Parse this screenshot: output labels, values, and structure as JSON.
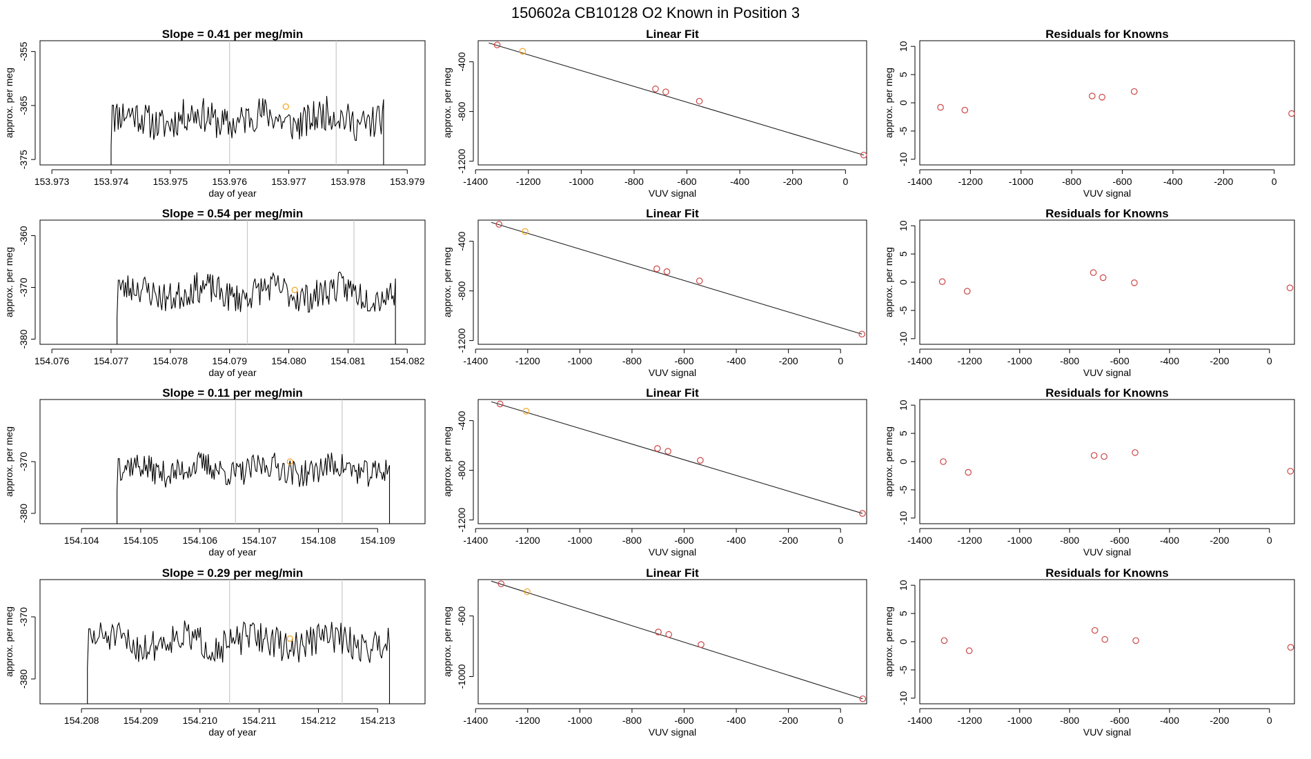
{
  "suptitle": "150602a      CB10128    O2 Known in Position  3",
  "colors": {
    "orange": "#f5a623",
    "red": "#cc4444",
    "line": "#000000",
    "grid": "#c8c8c8"
  },
  "chart_data": [
    {
      "type": "line",
      "title": "Slope =  0.41  per meg/min",
      "xlabel": "day of year",
      "ylabel": "approx. per meg",
      "xlim": [
        153.9728,
        153.9793
      ],
      "ylim": [
        -376,
        -353
      ],
      "xticks": [
        "153.973",
        "153.974",
        "153.975",
        "153.976",
        "153.977",
        "153.978",
        "153.979"
      ],
      "yticks": [
        "-355",
        "-365",
        "-375"
      ],
      "x_start": 153.974,
      "x_end": 153.9786,
      "baseline": -376,
      "y_mean": -367.5,
      "y_amp": 3.2,
      "seed": 11,
      "vlines": [
        153.976,
        153.9778
      ],
      "highlight": {
        "x": 153.97695,
        "y": -365.2
      }
    },
    {
      "type": "scatter",
      "title": "Linear Fit",
      "xlabel": "VUV signal",
      "ylabel": "approx. per meg",
      "xlim": [
        -1390,
        80
      ],
      "ylim": [
        -1230,
        -230
      ],
      "xticks": [
        "-1400",
        "-1200",
        "-1000",
        "-800",
        "-600",
        "-400",
        "-200",
        "0"
      ],
      "yticks": [
        "-400",
        "-800",
        "-1200"
      ],
      "points": [
        [
          -1318,
          -264
        ],
        [
          -1222,
          -315
        ],
        [
          -719,
          -618
        ],
        [
          -680,
          -642
        ],
        [
          -553,
          -717
        ],
        [
          69,
          -1151
        ]
      ],
      "point_colors": [
        "red",
        "orange",
        "red",
        "red",
        "red",
        "red"
      ],
      "fit": [
        [
          -1350,
          -248
        ],
        [
          69,
          -1151
        ]
      ]
    },
    {
      "type": "scatter",
      "title": "Residuals for Knowns",
      "xlabel": "VUV signal",
      "ylabel": "approx. per meg",
      "xlim": [
        -1400,
        80
      ],
      "ylim": [
        -11,
        11
      ],
      "xticks": [
        "-1400",
        "-1200",
        "-1000",
        "-800",
        "-600",
        "-400",
        "-200",
        "0"
      ],
      "yticks": [
        "10",
        "5",
        "0",
        "-5",
        "-10"
      ],
      "points": [
        [
          -1318,
          -0.8
        ],
        [
          -1222,
          -1.3
        ],
        [
          -719,
          1.2
        ],
        [
          -680,
          1.0
        ],
        [
          -553,
          2.0
        ],
        [
          69,
          -1.9
        ]
      ],
      "point_colors": [
        "red",
        "red",
        "red",
        "red",
        "red",
        "red"
      ]
    },
    {
      "type": "line",
      "title": "Slope =  0.54  per meg/min",
      "xlabel": "day of year",
      "ylabel": "approx. per meg",
      "xlim": [
        154.0758,
        154.0823
      ],
      "ylim": [
        -381,
        -357
      ],
      "xticks": [
        "154.076",
        "154.077",
        "154.078",
        "154.079",
        "154.080",
        "154.081",
        "154.082"
      ],
      "yticks": [
        "-360",
        "-370",
        "-380"
      ],
      "x_start": 154.0771,
      "x_end": 154.0818,
      "baseline": -381,
      "y_mean": -371.0,
      "y_amp": 3.0,
      "seed": 23,
      "vlines": [
        154.0793,
        154.0811
      ],
      "highlight": {
        "x": 154.0801,
        "y": -370.5
      }
    },
    {
      "type": "scatter",
      "title": "Linear Fit",
      "xlabel": "VUV signal",
      "ylabel": "approx. per meg",
      "xlim": [
        -1390,
        100
      ],
      "ylim": [
        -1230,
        -230
      ],
      "xticks": [
        "-1400",
        "-1200",
        "-1000",
        "-800",
        "-600",
        "-400",
        "-200",
        "0"
      ],
      "yticks": [
        "-400",
        "-800",
        "-1200"
      ],
      "points": [
        [
          -1310,
          -264
        ],
        [
          -1210,
          -322
        ],
        [
          -705,
          -622
        ],
        [
          -666,
          -645
        ],
        [
          -541,
          -719
        ],
        [
          82,
          -1148
        ]
      ],
      "point_colors": [
        "red",
        "orange",
        "red",
        "red",
        "red",
        "red"
      ],
      "fit": [
        [
          -1340,
          -248
        ],
        [
          82,
          -1148
        ]
      ]
    },
    {
      "type": "scatter",
      "title": "Residuals for Knowns",
      "xlabel": "VUV signal",
      "ylabel": "approx. per meg",
      "xlim": [
        -1400,
        100
      ],
      "ylim": [
        -11,
        11
      ],
      "xticks": [
        "-1400",
        "-1200",
        "-1000",
        "-800",
        "-600",
        "-400",
        "-200",
        "0"
      ],
      "yticks": [
        "10",
        "5",
        "0",
        "-5",
        "-10"
      ],
      "points": [
        [
          -1310,
          0.1
        ],
        [
          -1210,
          -1.6
        ],
        [
          -705,
          1.7
        ],
        [
          -666,
          0.8
        ],
        [
          -541,
          -0.1
        ],
        [
          82,
          -1.0
        ]
      ],
      "point_colors": [
        "red",
        "red",
        "red",
        "red",
        "red",
        "red"
      ]
    },
    {
      "type": "line",
      "title": "Slope =  0.11  per meg/min",
      "xlabel": "day of year",
      "ylabel": "approx. per meg",
      "xlim": [
        154.1033,
        154.1098
      ],
      "ylim": [
        -382,
        -358
      ],
      "xticks": [
        "154.104",
        "154.105",
        "154.106",
        "154.107",
        "154.108",
        "154.109"
      ],
      "yticks": [
        "-370",
        "-380"
      ],
      "x_start": 154.1046,
      "x_end": 154.1092,
      "baseline": -382,
      "y_mean": -371.5,
      "y_amp": 2.6,
      "seed": 37,
      "vlines": [
        154.1066,
        154.1084
      ],
      "highlight": {
        "x": 154.10752,
        "y": -370.0
      }
    },
    {
      "type": "scatter",
      "title": "Linear Fit",
      "xlabel": "VUV signal",
      "ylabel": "approx. per meg",
      "xlim": [
        -1390,
        100
      ],
      "ylim": [
        -1230,
        -230
      ],
      "xticks": [
        "-1400",
        "-1200",
        "-1000",
        "-800",
        "-600",
        "-400",
        "-200",
        "0"
      ],
      "yticks": [
        "-400",
        "-800",
        "-1200"
      ],
      "points": [
        [
          -1306,
          -266
        ],
        [
          -1206,
          -324
        ],
        [
          -702,
          -624
        ],
        [
          -662,
          -647
        ],
        [
          -538,
          -720
        ],
        [
          84,
          -1147
        ]
      ],
      "point_colors": [
        "red",
        "orange",
        "red",
        "red",
        "red",
        "red"
      ],
      "fit": [
        [
          -1340,
          -248
        ],
        [
          84,
          -1147
        ]
      ]
    },
    {
      "type": "scatter",
      "title": "Residuals for Knowns",
      "xlabel": "VUV signal",
      "ylabel": "approx. per meg",
      "xlim": [
        -1400,
        100
      ],
      "ylim": [
        -11,
        11
      ],
      "xticks": [
        "-1400",
        "-1200",
        "-1000",
        "-800",
        "-600",
        "-400",
        "-200",
        "0"
      ],
      "yticks": [
        "10",
        "5",
        "0",
        "-5",
        "-10"
      ],
      "points": [
        [
          -1306,
          0.0
        ],
        [
          -1206,
          -1.9
        ],
        [
          -702,
          1.1
        ],
        [
          -662,
          0.9
        ],
        [
          -538,
          1.6
        ],
        [
          84,
          -1.7
        ]
      ],
      "point_colors": [
        "red",
        "red",
        "red",
        "red",
        "red",
        "red"
      ]
    },
    {
      "type": "line",
      "title": "Slope =  0.29  per meg/min",
      "xlabel": "day of year",
      "ylabel": "approx. per meg",
      "xlim": [
        154.2073,
        154.2138
      ],
      "ylim": [
        -384,
        -364
      ],
      "xticks": [
        "154.208",
        "154.209",
        "154.210",
        "154.211",
        "154.212",
        "154.213"
      ],
      "yticks": [
        "-370",
        "-380"
      ],
      "x_start": 154.2081,
      "x_end": 154.2132,
      "baseline": -384,
      "y_mean": -374.0,
      "y_amp": 2.6,
      "seed": 51,
      "vlines": [
        154.2105,
        154.2124
      ],
      "highlight": {
        "x": 154.21152,
        "y": -373.5
      }
    },
    {
      "type": "scatter",
      "title": "Linear Fit",
      "xlabel": "VUV signal",
      "ylabel": "approx. per meg",
      "xlim": [
        -1390,
        100
      ],
      "ylim": [
        -1180,
        -360
      ],
      "xticks": [
        "-1400",
        "-1200",
        "-1000",
        "-800",
        "-600",
        "-400",
        "-200",
        "0"
      ],
      "yticks": [
        "-600",
        "-1000"
      ],
      "points": [
        [
          -1302,
          -388
        ],
        [
          -1202,
          -440
        ],
        [
          -699,
          -706
        ],
        [
          -659,
          -722
        ],
        [
          -535,
          -789
        ],
        [
          85,
          -1147
        ]
      ],
      "point_colors": [
        "red",
        "orange",
        "red",
        "red",
        "red",
        "red"
      ],
      "fit": [
        [
          -1340,
          -370
        ],
        [
          85,
          -1147
        ]
      ]
    },
    {
      "type": "scatter",
      "title": "Residuals for Knowns",
      "xlabel": "VUV signal",
      "ylabel": "approx. per meg",
      "xlim": [
        -1400,
        100
      ],
      "ylim": [
        -11,
        11
      ],
      "xticks": [
        "-1400",
        "-1200",
        "-1000",
        "-800",
        "-600",
        "-400",
        "-200",
        "0"
      ],
      "yticks": [
        "10",
        "5",
        "0",
        "-5",
        "-10"
      ],
      "points": [
        [
          -1302,
          0.2
        ],
        [
          -1202,
          -1.6
        ],
        [
          -699,
          2.0
        ],
        [
          -659,
          0.4
        ],
        [
          -535,
          0.2
        ],
        [
          85,
          -1.0
        ]
      ],
      "point_colors": [
        "red",
        "red",
        "red",
        "red",
        "red",
        "red"
      ]
    }
  ]
}
